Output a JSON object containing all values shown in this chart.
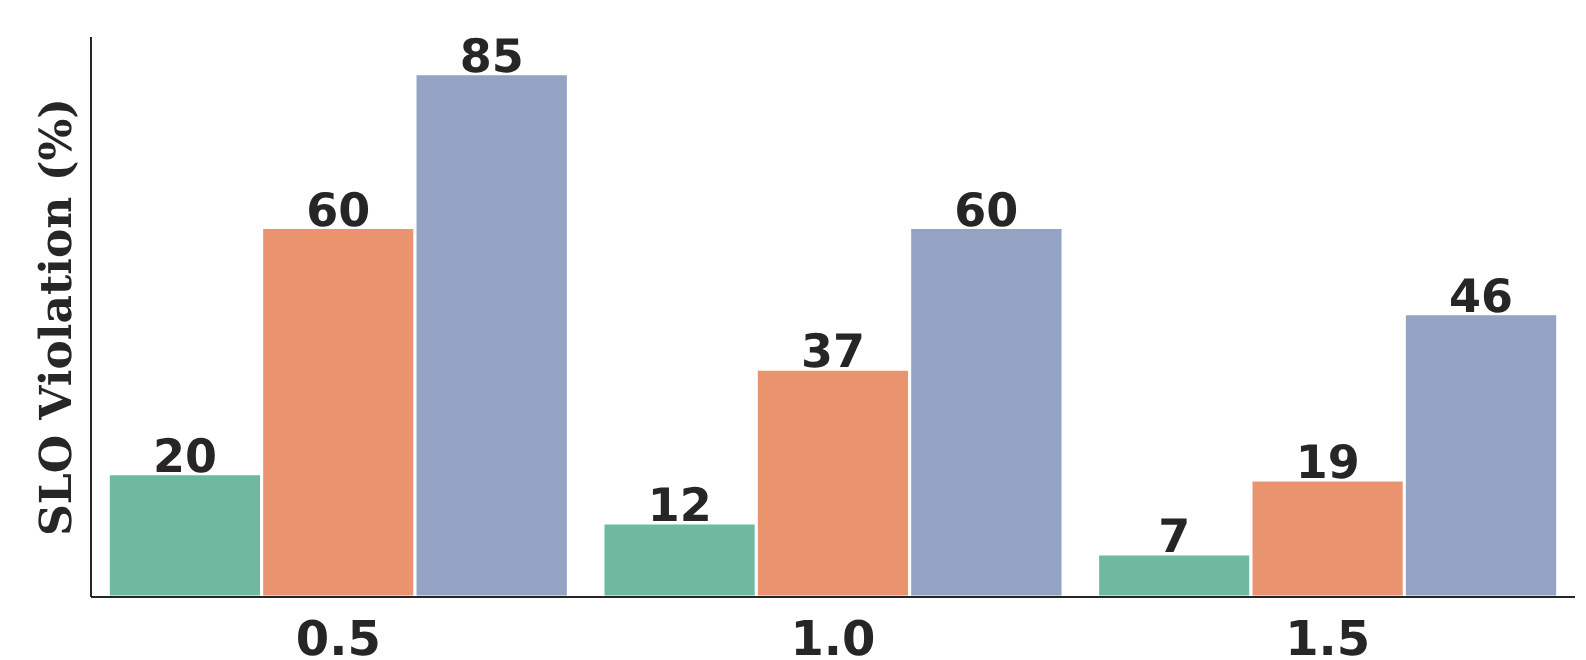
{
  "chart_data": {
    "type": "bar",
    "ylabel": "SLO Violation (%)",
    "categories": [
      "0.5",
      "1.0",
      "1.5"
    ],
    "series": [
      {
        "color": "#6fb9a0",
        "values": [
          20,
          12,
          7
        ]
      },
      {
        "color": "#e9946f",
        "values": [
          60,
          37,
          19
        ]
      },
      {
        "color": "#94a3c3",
        "values": [
          85,
          60,
          46
        ]
      }
    ],
    "data_labels": true,
    "grid": false
  }
}
